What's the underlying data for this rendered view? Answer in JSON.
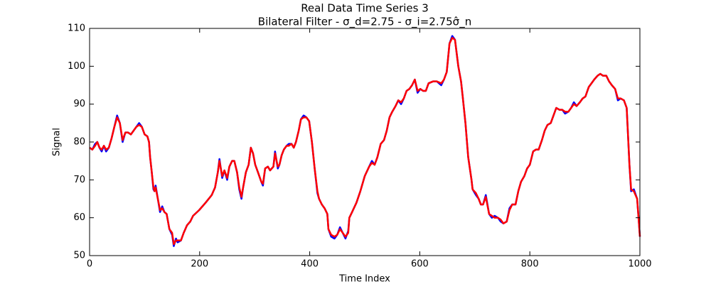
{
  "chart_data": {
    "type": "line",
    "title": "Real Data Time Series 3",
    "subtitle": "Bilateral Filter - σ_d=2.75 - σ_i=2.75σ̂_n",
    "xlabel": "Time Index",
    "ylabel": "Signal",
    "x": [
      0,
      5,
      10,
      14,
      18,
      22,
      26,
      30,
      35,
      40,
      45,
      50,
      55,
      60,
      65,
      70,
      75,
      80,
      85,
      90,
      95,
      100,
      105,
      108,
      110,
      113,
      116,
      118,
      120,
      124,
      128,
      132,
      136,
      140,
      145,
      150,
      153,
      157,
      160,
      166,
      171,
      177,
      183,
      188,
      199,
      211,
      222,
      228,
      233,
      236,
      241,
      245,
      250,
      254,
      259,
      263,
      268,
      272,
      276,
      279,
      284,
      289,
      293,
      297,
      301,
      306,
      312,
      315,
      319,
      324,
      328,
      334,
      337,
      342,
      345,
      349,
      353,
      358,
      362,
      367,
      371,
      375,
      380,
      384,
      389,
      394,
      399,
      404,
      409,
      414,
      417,
      422,
      427,
      432,
      434,
      439,
      445,
      450,
      455,
      460,
      465,
      470,
      472,
      477,
      485,
      492,
      500,
      508,
      513,
      518,
      523,
      529,
      535,
      540,
      545,
      550,
      556,
      561,
      566,
      571,
      576,
      581,
      586,
      591,
      596,
      601,
      606,
      611,
      616,
      624,
      631,
      639,
      644,
      649,
      654,
      659,
      664,
      670,
      675,
      678,
      683,
      688,
      694,
      696,
      702,
      707,
      711,
      715,
      720,
      726,
      731,
      736,
      742,
      747,
      752,
      758,
      763,
      768,
      774,
      779,
      784,
      790,
      795,
      800,
      806,
      811,
      816,
      822,
      827,
      832,
      838,
      843,
      848,
      854,
      859,
      864,
      870,
      875,
      880,
      885,
      891,
      896,
      901,
      907,
      912,
      917,
      923,
      928,
      933,
      939,
      944,
      949,
      955,
      960,
      965,
      971,
      976,
      979,
      981,
      984,
      989,
      995,
      997,
      1000
    ],
    "series": [
      {
        "color": "#0000ff",
        "values": [
          78.5,
          78,
          79.5,
          80,
          78.5,
          77.5,
          79,
          77.5,
          78.5,
          81,
          84,
          87,
          85,
          80,
          82.5,
          82.5,
          82,
          83,
          84,
          85,
          84,
          82,
          81.5,
          80,
          76,
          72,
          67.5,
          67,
          68.5,
          65,
          61.5,
          63,
          61.5,
          61,
          57,
          55.5,
          52.5,
          54.5,
          53.5,
          54,
          56,
          58,
          59,
          60.5,
          62,
          64,
          66,
          68,
          72,
          75.5,
          70.5,
          72.5,
          70,
          73.5,
          75,
          75,
          72,
          67.5,
          65,
          68,
          72,
          74,
          78.5,
          77,
          74,
          72,
          69.5,
          68.5,
          73,
          73.5,
          72.5,
          73.5,
          77.5,
          73,
          74,
          76.5,
          78,
          79,
          79.5,
          79.5,
          78.5,
          80,
          83,
          86,
          87,
          86.5,
          85.5,
          80,
          73,
          66.5,
          65,
          63.5,
          62.5,
          61,
          57,
          55,
          54.5,
          55.5,
          57.5,
          56,
          54.5,
          56.5,
          60,
          61.5,
          64,
          67,
          71,
          73.5,
          75,
          74,
          76,
          79.5,
          80.5,
          83,
          86.5,
          88,
          89.5,
          91,
          90,
          91.5,
          93.5,
          94,
          95,
          96.5,
          93,
          94,
          93.5,
          93.5,
          95.5,
          96,
          96,
          95,
          96.5,
          98.5,
          106,
          108,
          107,
          100,
          96,
          92,
          85,
          76,
          70,
          67.5,
          66,
          65,
          63.5,
          63.5,
          66,
          61,
          60,
          60.5,
          60,
          59,
          58.5,
          59,
          62.5,
          63.5,
          63.5,
          67,
          69.5,
          71,
          73,
          74,
          77.5,
          78,
          78,
          80.5,
          83,
          84.5,
          85,
          87,
          89,
          88.5,
          88.5,
          87.5,
          88,
          89,
          90.5,
          89.5,
          90.5,
          91.5,
          92,
          94.5,
          95.5,
          96.5,
          97.5,
          98,
          97.5,
          97.5,
          96,
          95,
          94,
          91,
          91.5,
          91,
          89,
          80,
          74,
          67,
          67.5,
          65,
          61,
          55
        ]
      },
      {
        "color": "#ff0000",
        "values": [
          78.5,
          78,
          79,
          80,
          78.5,
          78,
          79,
          78,
          78.5,
          81,
          84,
          86.5,
          85,
          80.5,
          82.5,
          82.5,
          82,
          83,
          84,
          84.5,
          84,
          82,
          81.5,
          80,
          76,
          72,
          68,
          67,
          68,
          65,
          62,
          62.5,
          61.5,
          61,
          57,
          56,
          53,
          54,
          54,
          54,
          56,
          58,
          59,
          60.5,
          62,
          64,
          66,
          68,
          72,
          75,
          71,
          72.5,
          70.5,
          73.5,
          75,
          75,
          72,
          68,
          65.5,
          68,
          72,
          74,
          78.5,
          77,
          74,
          72,
          69.5,
          69,
          73,
          73.5,
          72.5,
          73.5,
          77,
          73.5,
          74,
          76.5,
          78,
          79,
          79,
          79.5,
          78.5,
          80,
          83,
          86,
          86.5,
          86.5,
          85.5,
          80,
          73,
          67,
          65,
          63.5,
          62.5,
          61,
          57,
          55.5,
          55,
          55.5,
          57,
          56,
          55,
          56,
          60,
          61.5,
          64,
          67,
          71,
          73.5,
          74.5,
          74,
          76,
          79.5,
          80.5,
          83,
          86.5,
          88,
          89.5,
          91,
          90.5,
          91.5,
          93.5,
          94,
          95,
          96.5,
          93.5,
          94,
          93.5,
          93.5,
          95.5,
          96,
          96,
          95.5,
          96.5,
          98.5,
          106,
          107.5,
          107,
          100,
          96,
          92,
          85,
          76,
          70,
          67.5,
          66.5,
          65,
          63.5,
          63.5,
          65.5,
          61,
          60.5,
          60,
          60,
          59.5,
          58.5,
          59,
          62,
          63.5,
          63.5,
          67,
          69.5,
          71,
          73,
          74,
          77.5,
          78,
          78,
          80.5,
          83,
          84.5,
          85,
          87,
          89,
          88.5,
          88.5,
          88,
          88,
          89,
          90,
          89.5,
          90.5,
          91.5,
          92,
          94.5,
          95.5,
          96.5,
          97.5,
          98,
          97.5,
          97.5,
          96,
          95,
          94,
          91.5,
          91.5,
          91,
          89,
          80,
          74,
          67.5,
          67,
          65,
          61,
          55
        ]
      }
    ],
    "xlim": [
      0,
      1000
    ],
    "xticks": [
      0,
      200,
      400,
      600,
      800,
      1000
    ],
    "ylim": [
      50,
      110
    ],
    "yticks": [
      50,
      60,
      70,
      80,
      90,
      100,
      110
    ]
  }
}
